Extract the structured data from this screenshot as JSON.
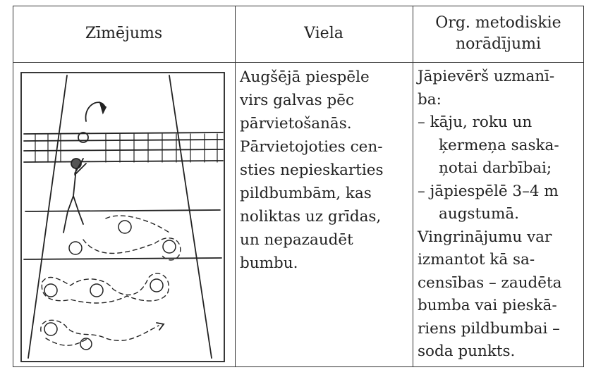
{
  "table": {
    "header": [
      "Zīmējums",
      "Viela",
      [
        "Org. metodiskie",
        "norādījumi"
      ]
    ],
    "rows": [
      [
        null,
        [
          "Augšējā piespēle",
          "virs galvas pēc",
          "pārvietošanās.",
          "Pārvietojoties cen-",
          "sties nepieskarties",
          "pildbumbām, kas",
          "noliktas uz grīdas,",
          "un nepazaudēt",
          "bumbu."
        ],
        [
          "Jāpievērš uzmanī-",
          "ba:",
          "– kāju, roku un",
          "ķermeņa saska-",
          "ņotai darbībai;",
          "– jāpiespēlē 3–4 m",
          "augstumā.",
          "Vingrinājumu var",
          "izmantot kā sa-",
          "censības – zaudēta",
          "bumba vai pieskā-",
          "riens pildbumbai –",
          "soda punkts."
        ]
      ]
    ]
  }
}
